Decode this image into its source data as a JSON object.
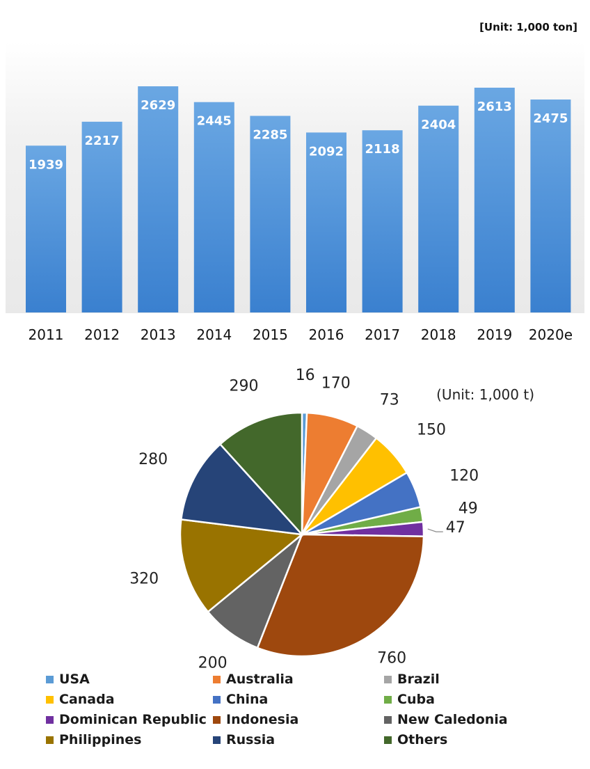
{
  "chart_data": [
    {
      "type": "bar",
      "unit": "[Unit: 1,000 ton]",
      "categories": [
        "2011",
        "2012",
        "2013",
        "2014",
        "2015",
        "2016",
        "2017",
        "2018",
        "2019",
        "2020e"
      ],
      "values": [
        1939,
        2217,
        2629,
        2445,
        2285,
        2092,
        2118,
        2404,
        2613,
        2475
      ],
      "ylim": [
        0,
        2800
      ],
      "grid": false,
      "color": "#4a8fd6"
    },
    {
      "type": "pie",
      "unit": "(Unit: 1,000 t)",
      "legend_position": "bottom",
      "slices": [
        {
          "label": "USA",
          "value": 16,
          "color": "#5b9bd5"
        },
        {
          "label": "Australia",
          "value": 170,
          "color": "#ed7d31"
        },
        {
          "label": "Brazil",
          "value": 73,
          "color": "#a5a5a5"
        },
        {
          "label": "Canada",
          "value": 150,
          "color": "#ffc000"
        },
        {
          "label": "China",
          "value": 120,
          "color": "#4472c4"
        },
        {
          "label": "Cuba",
          "value": 49,
          "color": "#70ad47"
        },
        {
          "label": "Dominican Republic",
          "value": 47,
          "color": "#7030a0"
        },
        {
          "label": "Indonesia",
          "value": 760,
          "color": "#9e480e"
        },
        {
          "label": "New Caledonia",
          "value": 200,
          "color": "#636363"
        },
        {
          "label": "Philippines",
          "value": 320,
          "color": "#997300"
        },
        {
          "label": "Russia",
          "value": 280,
          "color": "#264478"
        },
        {
          "label": "Others",
          "value": 290,
          "color": "#43682b"
        }
      ]
    }
  ]
}
